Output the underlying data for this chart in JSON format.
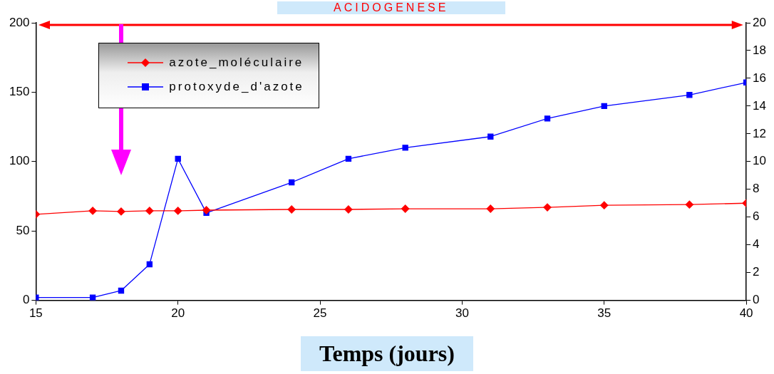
{
  "chart_data": {
    "type": "line",
    "xlabel": "Temps (jours)",
    "annotations": [
      "ACIDOGENESE"
    ],
    "xlim": [
      15,
      40
    ],
    "xticks": [
      15,
      20,
      25,
      30,
      35,
      40
    ],
    "ylim": [
      0,
      200
    ],
    "yticks": [
      0,
      50,
      100,
      150,
      200
    ],
    "y2lim": [
      0,
      20
    ],
    "y2ticks": [
      0,
      2,
      4,
      6,
      8,
      10,
      12,
      14,
      16,
      18,
      20
    ],
    "legend": "top left",
    "grid": false,
    "x": [
      15,
      17,
      18,
      19,
      20,
      21,
      24,
      26,
      28,
      31,
      33,
      35,
      38,
      40
    ],
    "series": [
      {
        "name": "azote_moléculaire",
        "color": "#ff0000",
        "marker": "diamond",
        "values": [
          62,
          64.5,
          64,
          64.5,
          64.5,
          65,
          65.5,
          65.5,
          66,
          66,
          67,
          68.5,
          69,
          70
        ]
      },
      {
        "name": "protoxyde_d'azote",
        "color": "#0000ff",
        "marker": "square",
        "axis": "y2",
        "values": [
          0.2,
          0.2,
          0.7,
          2.6,
          10.2,
          6.3,
          8.5,
          10.2,
          11,
          11.8,
          13.1,
          14,
          14.8,
          15.7
        ]
      }
    ]
  }
}
